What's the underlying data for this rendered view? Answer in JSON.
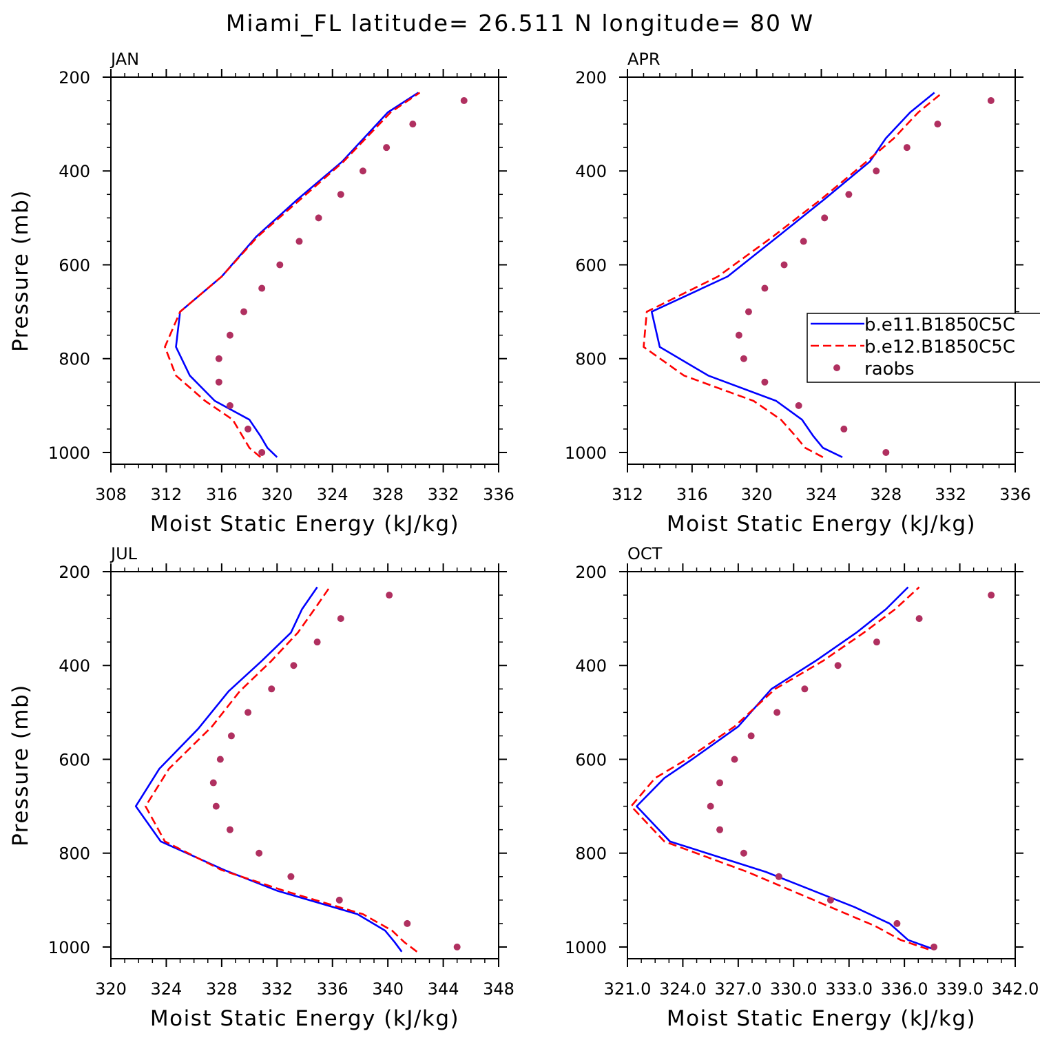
{
  "title": "Miami_FL  latitude= 26.511 N longitude= 80 W",
  "legend": {
    "entries": [
      {
        "label": "b.e11.B1850C5C",
        "color": "#0000ff",
        "style": "solid"
      },
      {
        "label": "b.e12.B1850C5C",
        "color": "#ff0000",
        "style": "dashed"
      },
      {
        "label": "raobs",
        "color": "#b03060",
        "style": "dots"
      }
    ]
  },
  "chart_data": [
    {
      "type": "line",
      "panel_label": "JAN",
      "xlabel": "Moist Static Energy (kJ/kg)",
      "ylabel": "Pressure (mb)",
      "xlim": [
        308,
        336
      ],
      "xticks": [
        "308",
        "312",
        "316",
        "320",
        "324",
        "328",
        "332",
        "336"
      ],
      "ylim": [
        200,
        1025
      ],
      "yticks": [
        "200",
        "400",
        "600",
        "800",
        "1000"
      ],
      "series": [
        {
          "name": "b.e11.B1850C5C",
          "color": "#0000ff",
          "style": "solid",
          "points": [
            [
              320.0,
              1010
            ],
            [
              319.3,
              990
            ],
            [
              318.8,
              965
            ],
            [
              318.0,
              930
            ],
            [
              315.5,
              890
            ],
            [
              313.7,
              836
            ],
            [
              312.7,
              775
            ],
            [
              313.0,
              700
            ],
            [
              316.0,
              625
            ],
            [
              318.5,
              540
            ],
            [
              321.5,
              460
            ],
            [
              324.7,
              380
            ],
            [
              328.0,
              275
            ],
            [
              330.2,
              233
            ]
          ]
        },
        {
          "name": "b.e12.B1850C5C",
          "color": "#ff0000",
          "style": "dashed",
          "points": [
            [
              318.8,
              1010
            ],
            [
              318.0,
              990
            ],
            [
              317.5,
              965
            ],
            [
              316.8,
              930
            ],
            [
              314.8,
              890
            ],
            [
              312.7,
              836
            ],
            [
              311.9,
              775
            ],
            [
              313.0,
              700
            ],
            [
              316.0,
              625
            ],
            [
              318.6,
              540
            ],
            [
              321.7,
              460
            ],
            [
              324.8,
              380
            ],
            [
              328.2,
              275
            ],
            [
              330.3,
              233
            ]
          ]
        },
        {
          "name": "raobs",
          "color": "#b03060",
          "style": "dots",
          "points": [
            [
              333.5,
              250
            ],
            [
              329.8,
              300
            ],
            [
              327.9,
              350
            ],
            [
              326.2,
              400
            ],
            [
              324.6,
              450
            ],
            [
              323.0,
              500
            ],
            [
              321.6,
              550
            ],
            [
              320.2,
              600
            ],
            [
              318.9,
              650
            ],
            [
              317.6,
              700
            ],
            [
              316.6,
              750
            ],
            [
              315.8,
              800
            ],
            [
              315.8,
              850
            ],
            [
              316.6,
              900
            ],
            [
              317.9,
              950
            ],
            [
              318.9,
              1000
            ]
          ]
        }
      ]
    },
    {
      "type": "line",
      "panel_label": "APR",
      "xlabel": "Moist Static Energy (kJ/kg)",
      "ylabel": "",
      "xlim": [
        312,
        336
      ],
      "xticks": [
        "312",
        "316",
        "320",
        "324",
        "328",
        "332",
        "336"
      ],
      "ylim": [
        200,
        1025
      ],
      "yticks": [
        "200",
        "400",
        "600",
        "800",
        "1000"
      ],
      "series": [
        {
          "name": "b.e11.B1850C5C",
          "color": "#0000ff",
          "style": "solid",
          "points": [
            [
              325.3,
              1010
            ],
            [
              324.1,
              990
            ],
            [
              323.5,
              965
            ],
            [
              322.8,
              930
            ],
            [
              321.2,
              890
            ],
            [
              317.0,
              836
            ],
            [
              314.0,
              775
            ],
            [
              313.5,
              700
            ],
            [
              318.2,
              625
            ],
            [
              321.3,
              540
            ],
            [
              324.2,
              460
            ],
            [
              327.0,
              380
            ],
            [
              328.0,
              330
            ],
            [
              329.5,
              275
            ],
            [
              331.0,
              233
            ]
          ]
        },
        {
          "name": "b.e12.B1850C5C",
          "color": "#ff0000",
          "style": "dashed",
          "points": [
            [
              324.1,
              1010
            ],
            [
              323.0,
              990
            ],
            [
              322.4,
              965
            ],
            [
              321.5,
              930
            ],
            [
              319.8,
              890
            ],
            [
              315.5,
              836
            ],
            [
              313.0,
              775
            ],
            [
              313.2,
              700
            ],
            [
              317.6,
              625
            ],
            [
              321.0,
              540
            ],
            [
              324.0,
              460
            ],
            [
              326.8,
              380
            ],
            [
              328.5,
              330
            ],
            [
              330.0,
              275
            ],
            [
              331.5,
              233
            ]
          ]
        },
        {
          "name": "raobs",
          "color": "#b03060",
          "style": "dots",
          "points": [
            [
              334.5,
              250
            ],
            [
              331.2,
              300
            ],
            [
              329.3,
              350
            ],
            [
              327.4,
              400
            ],
            [
              325.7,
              450
            ],
            [
              324.2,
              500
            ],
            [
              322.9,
              550
            ],
            [
              321.7,
              600
            ],
            [
              320.5,
              650
            ],
            [
              319.5,
              700
            ],
            [
              318.9,
              750
            ],
            [
              319.2,
              800
            ],
            [
              320.5,
              850
            ],
            [
              322.6,
              900
            ],
            [
              325.4,
              950
            ],
            [
              328.0,
              1000
            ]
          ]
        }
      ]
    },
    {
      "type": "line",
      "panel_label": "JUL",
      "xlabel": "Moist Static Energy (kJ/kg)",
      "ylabel": "Pressure (mb)",
      "xlim": [
        320,
        348
      ],
      "xticks": [
        "320",
        "324",
        "328",
        "332",
        "336",
        "340",
        "344",
        "348"
      ],
      "ylim": [
        200,
        1025
      ],
      "yticks": [
        "200",
        "400",
        "600",
        "800",
        "1000"
      ],
      "series": [
        {
          "name": "b.e11.B1850C5C",
          "color": "#0000ff",
          "style": "solid",
          "points": [
            [
              341.0,
              1010
            ],
            [
              340.5,
              990
            ],
            [
              339.8,
              965
            ],
            [
              337.8,
              930
            ],
            [
              332.0,
              880
            ],
            [
              328.2,
              836
            ],
            [
              323.6,
              775
            ],
            [
              321.8,
              700
            ],
            [
              323.5,
              620
            ],
            [
              326.3,
              535
            ],
            [
              328.5,
              455
            ],
            [
              330.9,
              390
            ],
            [
              333.0,
              330
            ],
            [
              333.8,
              280
            ],
            [
              334.9,
              233
            ]
          ]
        },
        {
          "name": "b.e12.B1850C5C",
          "color": "#ff0000",
          "style": "dashed",
          "points": [
            [
              342.1,
              1010
            ],
            [
              341.2,
              990
            ],
            [
              340.3,
              965
            ],
            [
              338.2,
              930
            ],
            [
              332.5,
              880
            ],
            [
              328.0,
              836
            ],
            [
              323.9,
              775
            ],
            [
              322.5,
              700
            ],
            [
              324.2,
              620
            ],
            [
              327.3,
              530
            ],
            [
              329.3,
              455
            ],
            [
              331.6,
              390
            ],
            [
              333.5,
              330
            ],
            [
              334.7,
              280
            ],
            [
              335.8,
              233
            ]
          ]
        },
        {
          "name": "raobs",
          "color": "#b03060",
          "style": "dots",
          "points": [
            [
              340.1,
              250
            ],
            [
              336.6,
              300
            ],
            [
              334.9,
              350
            ],
            [
              333.2,
              400
            ],
            [
              331.6,
              450
            ],
            [
              329.9,
              500
            ],
            [
              328.7,
              550
            ],
            [
              327.9,
              600
            ],
            [
              327.4,
              650
            ],
            [
              327.6,
              700
            ],
            [
              328.6,
              750
            ],
            [
              330.7,
              800
            ],
            [
              333.0,
              850
            ],
            [
              336.5,
              900
            ],
            [
              341.4,
              950
            ],
            [
              345.0,
              1000
            ]
          ]
        }
      ]
    },
    {
      "type": "line",
      "panel_label": "OCT",
      "xlabel": "Moist Static Energy (kJ/kg)",
      "ylabel": "",
      "xlim": [
        321.0,
        342.0
      ],
      "xticks": [
        "321.0",
        "324.0",
        "327.0",
        "330.0",
        "333.0",
        "336.0",
        "339.0",
        "342.0"
      ],
      "ylim": [
        200,
        1025
      ],
      "yticks": [
        "200",
        "400",
        "600",
        "800",
        "1000"
      ],
      "series": [
        {
          "name": "b.e11.B1850C5C",
          "color": "#0000ff",
          "style": "solid",
          "points": [
            [
              337.6,
              1005
            ],
            [
              336.2,
              985
            ],
            [
              335.2,
              950
            ],
            [
              333.3,
              915
            ],
            [
              328.5,
              840
            ],
            [
              323.3,
              775
            ],
            [
              321.5,
              700
            ],
            [
              323.0,
              640
            ],
            [
              324.5,
              600
            ],
            [
              327.0,
              530
            ],
            [
              328.8,
              450
            ],
            [
              331.2,
              390
            ],
            [
              333.4,
              330
            ],
            [
              335.0,
              280
            ],
            [
              336.2,
              233
            ]
          ]
        },
        {
          "name": "b.e12.B1850C5C",
          "color": "#ff0000",
          "style": "dashed",
          "points": [
            [
              337.3,
              1005
            ],
            [
              335.8,
              985
            ],
            [
              334.4,
              955
            ],
            [
              332.6,
              925
            ],
            [
              327.5,
              840
            ],
            [
              323.0,
              775
            ],
            [
              321.2,
              700
            ],
            [
              322.5,
              640
            ],
            [
              324.2,
              600
            ],
            [
              326.8,
              530
            ],
            [
              329.0,
              450
            ],
            [
              331.6,
              390
            ],
            [
              333.8,
              330
            ],
            [
              335.5,
              280
            ],
            [
              336.8,
              233
            ]
          ]
        },
        {
          "name": "raobs",
          "color": "#b03060",
          "style": "dots",
          "points": [
            [
              340.7,
              250
            ],
            [
              336.8,
              300
            ],
            [
              334.5,
              350
            ],
            [
              332.4,
              400
            ],
            [
              330.6,
              450
            ],
            [
              329.1,
              500
            ],
            [
              327.7,
              550
            ],
            [
              326.8,
              600
            ],
            [
              326.0,
              650
            ],
            [
              325.5,
              700
            ],
            [
              326.0,
              750
            ],
            [
              327.3,
              800
            ],
            [
              329.2,
              850
            ],
            [
              332.0,
              900
            ],
            [
              335.6,
              950
            ],
            [
              337.6,
              1000
            ]
          ]
        }
      ]
    }
  ]
}
